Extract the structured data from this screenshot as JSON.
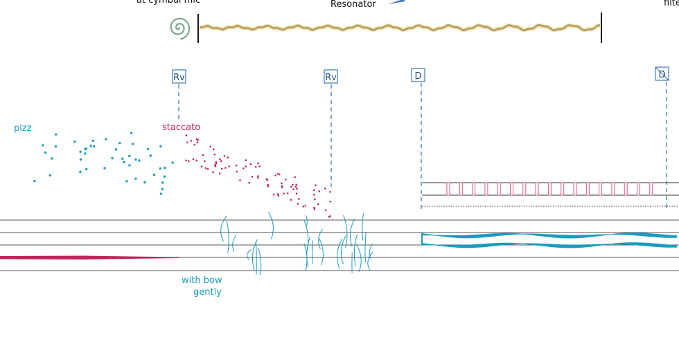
{
  "header": {
    "cymbal": "at cymbal mic",
    "resonator": "Resonator",
    "filter": "filte"
  },
  "markers": [
    {
      "label": "Rv"
    },
    {
      "label": "Rv"
    },
    {
      "label": "D"
    },
    {
      "label": "D"
    }
  ],
  "annotations": {
    "pizz": "pizz",
    "staccato": "staccato",
    "with_bow": "with bow",
    "gently": "gently"
  }
}
